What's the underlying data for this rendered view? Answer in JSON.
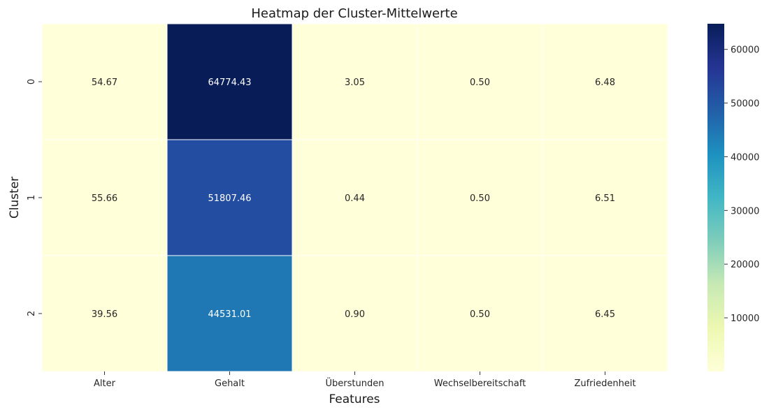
{
  "chart_data": {
    "type": "heatmap",
    "title": "Heatmap der Cluster-Mittelwerte",
    "xlabel": "Features",
    "ylabel": "Cluster",
    "x": [
      "Alter",
      "Gehalt",
      "Überstunden",
      "Wechselbereitschaft",
      "Zufriedenheit"
    ],
    "y": [
      "0",
      "1",
      "2"
    ],
    "values": [
      [
        54.67,
        64774.43,
        3.05,
        0.5,
        6.48
      ],
      [
        55.66,
        51807.46,
        0.44,
        0.5,
        6.51
      ],
      [
        39.56,
        44531.01,
        0.9,
        0.5,
        6.45
      ]
    ],
    "value_labels": [
      [
        "54.67",
        "64774.43",
        "3.05",
        "0.50",
        "6.48"
      ],
      [
        "55.66",
        "51807.46",
        "0.44",
        "0.50",
        "6.51"
      ],
      [
        "39.56",
        "44531.01",
        "0.90",
        "0.50",
        "6.45"
      ]
    ],
    "colormap": "YlGnBu",
    "vmin": 0.44,
    "vmax": 64774.43,
    "colorbar_ticks": [
      10000,
      20000,
      30000,
      40000,
      50000,
      60000
    ],
    "colorbar_tick_labels": [
      "10000",
      "20000",
      "30000",
      "40000",
      "50000",
      "60000"
    ],
    "grid": false
  }
}
